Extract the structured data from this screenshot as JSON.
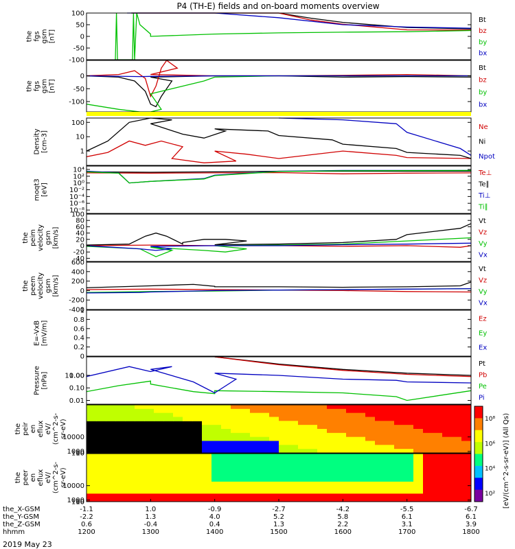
{
  "title": "P4 (TH-E) fields and on-board moments overview",
  "date_label": "2019 May 23",
  "chart_data": [
    {
      "type": "line",
      "ylabel": [
        "the",
        "fgs",
        "gsm",
        "[nT]"
      ],
      "ylim": [
        -100,
        100
      ],
      "yticks": [
        100,
        50,
        0,
        -50,
        -100
      ],
      "legend": [
        "Bt",
        "bz",
        "by",
        "bx"
      ],
      "legend_colors": [
        "#000000",
        "#d00000",
        "#00c000",
        "#0000c0"
      ],
      "series": [
        {
          "legend_index": 0,
          "color": "#000000",
          "x": [
            1242,
            1300,
            1400,
            1500,
            1530,
            1600,
            1700,
            1800
          ],
          "y": [
            100,
            100,
            100,
            100,
            78,
            60,
            38,
            32
          ]
        },
        {
          "legend_index": 1,
          "color": "#d00000",
          "x": [
            1242,
            1300,
            1400,
            1500,
            1530,
            1600,
            1700,
            1800
          ],
          "y": [
            100,
            100,
            100,
            100,
            70,
            52,
            28,
            27
          ]
        },
        {
          "legend_index": 2,
          "color": "#00c000",
          "x": [
            1227,
            1228,
            1229,
            1243,
            1244,
            1245,
            1247,
            1250,
            1260,
            1300,
            1400,
            1500,
            1600,
            1700,
            1800
          ],
          "y": [
            -100,
            100,
            -100,
            -100,
            100,
            -100,
            100,
            50,
            10,
            0,
            10,
            15,
            18,
            20,
            25
          ]
        },
        {
          "legend_index": 3,
          "color": "#0000c0",
          "x": [
            1238,
            1300,
            1400,
            1500,
            1600,
            1700,
            1800
          ],
          "y": [
            100,
            100,
            100,
            80,
            50,
            40,
            35
          ]
        }
      ]
    },
    {
      "type": "line",
      "ylabel": [
        "the",
        "fgs",
        "gsm",
        "[nT]"
      ],
      "ylim": [
        -140,
        60
      ],
      "yticks": [
        0,
        -50,
        -100
      ],
      "legend": [
        "Bt",
        "bz",
        "by",
        "bx"
      ],
      "legend_colors": [
        "#000000",
        "#d00000",
        "#00c000",
        "#0000c0"
      ],
      "series": [
        {
          "legend_index": 0,
          "color": "#000000",
          "x": [
            1200,
            1230,
            1245,
            1255,
            1260,
            1265,
            1270,
            1280,
            1300,
            1400,
            1500,
            1600,
            1700,
            1800
          ],
          "y": [
            0,
            -5,
            -20,
            -60,
            -110,
            -120,
            -80,
            -20,
            -5,
            0,
            0,
            -5,
            -3,
            -5
          ]
        },
        {
          "legend_index": 1,
          "color": "#d00000",
          "x": [
            1200,
            1230,
            1245,
            1255,
            1260,
            1265,
            1270,
            1275,
            1285,
            1300,
            1400,
            1500,
            1600,
            1700,
            1800
          ],
          "y": [
            0,
            5,
            20,
            -10,
            -80,
            -40,
            30,
            60,
            30,
            5,
            0,
            0,
            2,
            5,
            0
          ]
        },
        {
          "legend_index": 2,
          "color": "#00c000",
          "x": [
            1200,
            1230,
            1250,
            1260,
            1270,
            1300,
            1350,
            1400,
            1500,
            1600,
            1700,
            1800
          ],
          "y": [
            -110,
            -130,
            -140,
            -140,
            -130,
            -70,
            -20,
            -5,
            0,
            0,
            0,
            0
          ]
        },
        {
          "legend_index": 3,
          "color": "#0000c0",
          "x": [
            1200,
            1250,
            1300,
            1400,
            1500,
            1600,
            1700,
            1800
          ],
          "y": [
            0,
            -3,
            -2,
            0,
            0,
            0,
            0,
            0
          ]
        }
      ]
    },
    {
      "type": "line",
      "ylabel": [
        "Density",
        "[cm-3]"
      ],
      "yscale": "log",
      "ylim": [
        0.1,
        200
      ],
      "yticks": [
        100,
        10,
        1
      ],
      "legend": [
        "Ne",
        "Ni",
        "Npot"
      ],
      "legend_colors": [
        "#d00000",
        "#000000",
        "#0000c0"
      ],
      "series": [
        {
          "legend_index": 0,
          "color": "#d00000",
          "x": [
            1200,
            1220,
            1240,
            1255,
            1270,
            1290,
            1320,
            1350,
            1380,
            1400,
            1430,
            1500,
            1600,
            1650,
            1700,
            1800
          ],
          "y": [
            0.4,
            0.8,
            5,
            2.5,
            5,
            2,
            0.3,
            0.15,
            0.2,
            1,
            0.6,
            0.3,
            1,
            0.5,
            0.35,
            0.3
          ]
        },
        {
          "legend_index": 1,
          "color": "#000000",
          "x": [
            1200,
            1220,
            1240,
            1260,
            1280,
            1300,
            1330,
            1350,
            1370,
            1400,
            1450,
            1500,
            1550,
            1600,
            1650,
            1700,
            1750,
            1800
          ],
          "y": [
            1,
            5,
            100,
            200,
            150,
            80,
            15,
            8,
            25,
            35,
            25,
            12,
            6,
            3,
            1.5,
            0.8,
            0.5,
            0.3
          ]
        },
        {
          "legend_index": 2,
          "color": "#0000c0",
          "x": [
            1500,
            1600,
            1650,
            1700,
            1750,
            1800
          ],
          "y": [
            200,
            150,
            80,
            20,
            1.5,
            0.5
          ]
        }
      ]
    },
    {
      "type": "line",
      "ylabel": [
        "moqt3",
        "[eV]"
      ],
      "yscale": "log",
      "ylim": [
        1e-09,
        100000.0
      ],
      "yticks": [
        "10⁴",
        "10²",
        "10⁰",
        "10⁻²",
        "10⁻⁴",
        "10⁻⁶",
        "10⁻⁸"
      ],
      "legend": [
        "Te⊥",
        "Te∥",
        "Ti⊥",
        "Ti∥"
      ],
      "legend_colors": [
        "#d00000",
        "#000000",
        "#0000c0",
        "#00c000"
      ],
      "series": [
        {
          "legend_index": 0,
          "color": "#d00000",
          "x": [
            1200,
            1300,
            1400,
            1500,
            1600,
            1700,
            1800
          ],
          "y": [
            1000,
            800,
            1000,
            1200,
            500,
            800,
            1000
          ]
        },
        {
          "legend_index": 1,
          "color": "#000000",
          "x": [
            1200,
            1300,
            1400,
            1500,
            1600,
            1700,
            1800
          ],
          "y": [
            2000,
            1500,
            2000,
            3000,
            3000,
            3000,
            3000
          ]
        },
        {
          "legend_index": 2,
          "color": "#0000c0",
          "x": [
            1200,
            1230,
            1240,
            1300,
            1350,
            1400,
            1500,
            1600,
            1700,
            1800
          ],
          "y": [
            3000,
            1000,
            1,
            3,
            20,
            200,
            3000,
            5000,
            5000,
            5000
          ]
        },
        {
          "legend_index": 3,
          "color": "#00c000",
          "x": [
            1200,
            1230,
            1240,
            1300,
            1350,
            1400,
            1500,
            1600,
            1700,
            1800
          ],
          "y": [
            2000,
            800,
            1,
            3,
            15,
            150,
            2500,
            4000,
            4500,
            5000
          ]
        }
      ]
    },
    {
      "type": "line",
      "ylabel": [
        "the",
        "peim",
        "velocity",
        "gsm",
        "[km/s]"
      ],
      "ylim": [
        -50,
        100
      ],
      "yticks": [
        100,
        80,
        60,
        40,
        20,
        0,
        -20,
        -40
      ],
      "legend": [
        "Vt",
        "Vz",
        "Vy",
        "Vx"
      ],
      "legend_colors": [
        "#000000",
        "#d00000",
        "#00c000",
        "#0000c0"
      ],
      "series": [
        {
          "legend_index": 0,
          "color": "#000000",
          "x": [
            1200,
            1240,
            1255,
            1265,
            1275,
            1290,
            1330,
            1350,
            1370,
            1390,
            1400,
            1500,
            1600,
            1650,
            1700,
            1750,
            1800
          ],
          "y": [
            2,
            5,
            30,
            40,
            30,
            5,
            10,
            20,
            20,
            15,
            3,
            5,
            10,
            20,
            35,
            55,
            70
          ]
        },
        {
          "legend_index": 1,
          "color": "#d00000",
          "x": [
            1200,
            1300,
            1400,
            1500,
            1600,
            1700,
            1750,
            1800
          ],
          "y": [
            0,
            2,
            0,
            0,
            -2,
            0,
            -5,
            0
          ]
        },
        {
          "legend_index": 2,
          "color": "#00c000",
          "x": [
            1200,
            1250,
            1265,
            1280,
            1300,
            1350,
            1370,
            1390,
            1400,
            1500,
            1600,
            1700,
            1800
          ],
          "y": [
            -2,
            -10,
            -35,
            -15,
            -5,
            -15,
            -20,
            -10,
            0,
            2,
            5,
            15,
            25
          ]
        },
        {
          "legend_index": 3,
          "color": "#0000c0",
          "x": [
            1200,
            1250,
            1265,
            1280,
            1300,
            1400,
            1500,
            1600,
            1700,
            1800
          ],
          "y": [
            0,
            -10,
            -15,
            -10,
            -2,
            0,
            0,
            3,
            5,
            8
          ]
        }
      ]
    },
    {
      "type": "line",
      "ylabel": [
        "the",
        "peem",
        "velocity",
        "gsm",
        "[km/s]"
      ],
      "ylim": [
        -400,
        600
      ],
      "yticks": [
        600,
        400,
        200,
        0,
        -200,
        -400
      ],
      "legend": [
        "Vt",
        "Vz",
        "Vy",
        "Vx"
      ],
      "legend_colors": [
        "#000000",
        "#d00000",
        "#00c000",
        "#0000c0"
      ],
      "series": [
        {
          "legend_index": 0,
          "color": "#000000",
          "x": [
            1200,
            1300,
            1340,
            1360,
            1400,
            1500,
            1600,
            1700,
            1750,
            1800
          ],
          "y": [
            60,
            100,
            130,
            90,
            80,
            80,
            70,
            80,
            100,
            180
          ]
        },
        {
          "legend_index": 1,
          "color": "#d00000",
          "x": [
            1200,
            1300,
            1400,
            1500,
            1600,
            1700,
            1800
          ],
          "y": [
            20,
            30,
            20,
            10,
            0,
            -20,
            -30
          ]
        },
        {
          "legend_index": 2,
          "color": "#00c000",
          "x": [
            1200,
            1300,
            1400,
            1500,
            1600,
            1700,
            1800
          ],
          "y": [
            -40,
            -20,
            -10,
            10,
            20,
            30,
            40
          ]
        },
        {
          "legend_index": 3,
          "color": "#0000c0",
          "x": [
            1200,
            1250,
            1300,
            1400,
            1500,
            1600,
            1700,
            1800
          ],
          "y": [
            -50,
            -40,
            -30,
            0,
            10,
            20,
            30,
            40
          ]
        }
      ]
    },
    {
      "type": "line",
      "ylabel": [
        "E=-VxB",
        "[mV/m]"
      ],
      "ylim": [
        0,
        1
      ],
      "yticks": [
        1.0,
        0.8,
        0.6,
        0.4,
        0.2,
        0.0
      ],
      "legend": [
        "Ez",
        "Ey",
        "Ex"
      ],
      "legend_colors": [
        "#d00000",
        "#00c000",
        "#0000c0"
      ],
      "series": []
    },
    {
      "type": "line",
      "ylabel": [
        "Pressure",
        "[nPa]"
      ],
      "yscale": "log",
      "ylim": [
        0.005,
        30
      ],
      "yticks": [
        "10.00",
        "1.00",
        "0.10",
        "0.01"
      ],
      "legend": [
        "Pt",
        "Pb",
        "Pe",
        "Pi"
      ],
      "legend_colors": [
        "#000000",
        "#d00000",
        "#00c000",
        "#0000c0"
      ],
      "series": [
        {
          "legend_index": 0,
          "color": "#000000",
          "x": [
            1400,
            1500,
            1600,
            1700,
            1800
          ],
          "y": [
            30,
            8,
            3,
            1.5,
            1
          ]
        },
        {
          "legend_index": 1,
          "color": "#d00000",
          "x": [
            1400,
            1500,
            1600,
            1700,
            1800
          ],
          "y": [
            30,
            7,
            2.5,
            1.2,
            0.8
          ]
        },
        {
          "legend_index": 2,
          "color": "#00c000",
          "x": [
            1200,
            1230,
            1260,
            1300,
            1340,
            1360,
            1400,
            1500,
            1600,
            1650,
            1700,
            1800
          ],
          "y": [
            0.05,
            0.15,
            0.35,
            0.2,
            0.05,
            0.035,
            0.06,
            0.05,
            0.04,
            0.02,
            0.01,
            0.06
          ]
        },
        {
          "legend_index": 3,
          "color": "#0000c0",
          "x": [
            1200,
            1240,
            1260,
            1280,
            1300,
            1340,
            1360,
            1380,
            1400,
            1500,
            1600,
            1650,
            1700,
            1800
          ],
          "y": [
            0.8,
            5,
            2,
            5,
            3,
            0.3,
            0.04,
            0.5,
            1.5,
            1,
            0.5,
            0.4,
            0.3,
            0.25
          ]
        }
      ]
    },
    {
      "type": "heatmap",
      "ylabel": [
        "the",
        "peir",
        "en",
        "eflux",
        "eV/",
        "(cm^2-s-",
        "sr-eV)"
      ],
      "ylim": [
        5,
        30000
      ],
      "yticks": [
        10000,
        1000,
        100,
        10
      ]
    },
    {
      "type": "heatmap",
      "ylabel": [
        "the",
        "peer",
        "en",
        "eflux",
        "eV/",
        "(cm^2-s-",
        "sr-eV)"
      ],
      "ylim": [
        5,
        30000
      ],
      "yticks": [
        10000,
        1000,
        100,
        10
      ]
    }
  ],
  "colorbar": {
    "label": "[eV/(cm^2-s-sr-eV)] (All Qs)",
    "ticks": [
      "10⁸",
      "10⁶",
      "10⁴",
      "10²"
    ]
  },
  "x_axis": {
    "row_labels": [
      "the_X-GSM",
      "the_Y-GSM",
      "the_Z-GSM",
      "hhmm"
    ],
    "columns": [
      {
        "time": "1200",
        "X": "-1.1",
        "Y": "-2.2",
        "Z": "0.6"
      },
      {
        "time": "1300",
        "X": "1.0",
        "Y": "1.3",
        "Z": "-0.4"
      },
      {
        "time": "1400",
        "X": "-0.9",
        "Y": "4.0",
        "Z": "0.4"
      },
      {
        "time": "1500",
        "X": "-2.7",
        "Y": "5.2",
        "Z": "1.3"
      },
      {
        "time": "1600",
        "X": "-4.2",
        "Y": "5.8",
        "Z": "2.2"
      },
      {
        "time": "1700",
        "X": "-5.5",
        "Y": "6.1",
        "Z": "3.1"
      },
      {
        "time": "1800",
        "X": "-6.7",
        "Y": "6.1",
        "Z": "3.9"
      }
    ]
  }
}
